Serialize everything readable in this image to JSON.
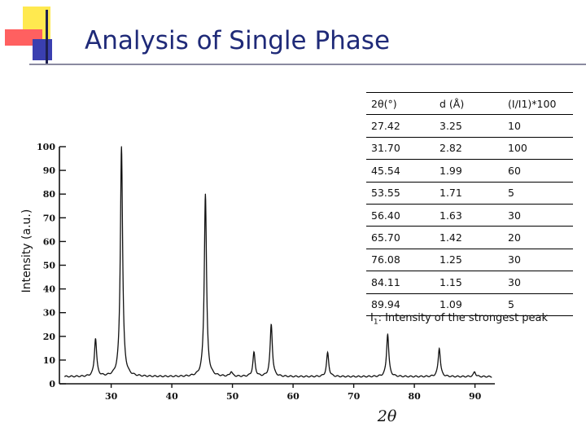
{
  "title": "Analysis of Single Phase",
  "y_axis_label": "Intensity (a.u.)",
  "table": {
    "headers": [
      "2θ(°)",
      "d (Å)",
      "(I/I1)*100"
    ],
    "rows": [
      [
        "27.42",
        "3.25",
        "10"
      ],
      [
        "31.70",
        "2.82",
        "100"
      ],
      [
        "45.54",
        "1.99",
        "60"
      ],
      [
        "53.55",
        "1.71",
        "5"
      ],
      [
        "56.40",
        "1.63",
        "30"
      ],
      [
        "65.70",
        "1.42",
        "20"
      ],
      [
        "76.08",
        "1.25",
        "30"
      ],
      [
        "84.11",
        "1.15",
        "30"
      ],
      [
        "89.94",
        "1.09",
        "5"
      ]
    ]
  },
  "footnote": {
    "symbol": "I",
    "subscript": "1",
    "text": ": Intensity of the strongest peak"
  },
  "colors": {
    "title": "#1f2a78",
    "accent_yellow": "#ffe94f",
    "accent_red": "#ff6060",
    "accent_blue": "#3a3fb0"
  },
  "chart_data": {
    "type": "line",
    "xlabel": "2θ",
    "xlim": [
      22,
      93
    ],
    "ylim": [
      0,
      100
    ],
    "x_ticks": [
      30,
      40,
      50,
      60,
      70,
      80,
      90
    ],
    "y_ticks": [
      0,
      10,
      20,
      30,
      40,
      50,
      60,
      70,
      80,
      90,
      100
    ],
    "baseline": 3,
    "peaks": [
      {
        "x": 27.42,
        "y": 19
      },
      {
        "x": 31.7,
        "y": 100
      },
      {
        "x": 45.54,
        "y": 80
      },
      {
        "x": 49.8,
        "y": 5
      },
      {
        "x": 53.55,
        "y": 13
      },
      {
        "x": 56.4,
        "y": 25
      },
      {
        "x": 65.7,
        "y": 13
      },
      {
        "x": 75.6,
        "y": 21
      },
      {
        "x": 84.11,
        "y": 15
      },
      {
        "x": 89.94,
        "y": 5
      }
    ]
  }
}
